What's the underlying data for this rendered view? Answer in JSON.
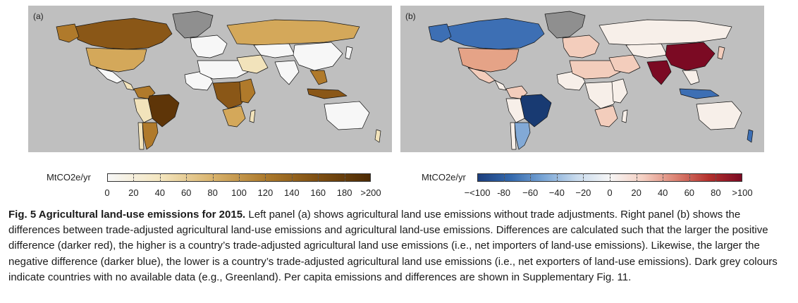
{
  "panel_a": {
    "label": "(a)",
    "colors": {
      "ocean": "#bfbfbf",
      "no_data": "#8f8f8f",
      "low": "#f7f7f7",
      "light": "#f2e3bb",
      "mid": "#d4a85a",
      "midhigh": "#b07a2b",
      "high": "#8a5717",
      "highest": "#5e3508"
    }
  },
  "panel_b": {
    "label": "(b)",
    "colors": {
      "ocean": "#bfbfbf",
      "no_data": "#8f8f8f",
      "neutral": "#f7efe9",
      "light_red": "#f3cdbc",
      "salmon": "#e5a387",
      "dark_red": "#7b0a23",
      "dark_blue": "#183a72",
      "blue": "#3d6fb4",
      "light_blue": "#82a9d6"
    }
  },
  "legend_a": {
    "unit": "MtCO2e/yr",
    "ticks": [
      "0",
      "20",
      "40",
      "60",
      "80",
      "100",
      "120",
      "140",
      "160",
      "180",
      ">200"
    ]
  },
  "legend_b": {
    "unit": "MtCO2e/yr",
    "ticks": [
      "−<100",
      "-80",
      "−60",
      "−40",
      "−20",
      "0",
      "20",
      "40",
      "60",
      "80",
      ">100"
    ]
  },
  "caption": {
    "title": "Fig. 5 Agricultural land-use emissions for 2015.",
    "body": " Left panel (a) shows agricultural land use emissions without trade adjustments. Right panel (b) shows the differences between trade-adjusted agricultural land-use emissions and agricultural land-use emissions. Differences are calculated such that the larger the positive difference (darker red), the higher is a country’s trade-adjusted agricultural land use emissions (i.e., net importers of land-use emissions). Likewise, the larger the negative difference (darker blue), the lower is a country’s trade-adjusted agricultural land use emissions (i.e., net exporters of land-use emissions). Dark grey colours indicate countries with no available data (e.g., Greenland). Per capita emissions and differences are shown in Supplementary Fig. 11."
  }
}
